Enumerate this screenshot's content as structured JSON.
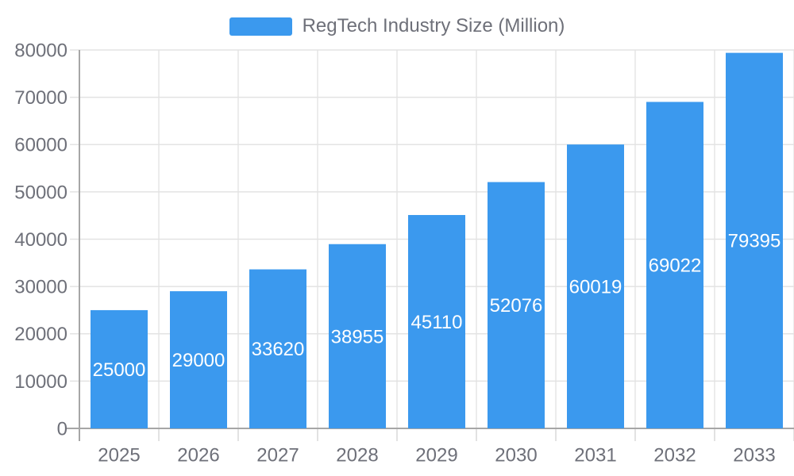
{
  "legend": {
    "label": "RegTech Industry Size (Million)"
  },
  "chart_data": {
    "type": "bar",
    "title": "",
    "categories": [
      "2025",
      "2026",
      "2027",
      "2028",
      "2029",
      "2030",
      "2031",
      "2032",
      "2033"
    ],
    "series": [
      {
        "name": "RegTech Industry Size (Million)",
        "values": [
          25000,
          29000,
          33620,
          38955,
          45110,
          52076,
          60019,
          69022,
          79395
        ]
      }
    ],
    "value_labels": [
      "25000",
      "29000",
      "33620",
      "38955",
      "45110",
      "52076",
      "60019",
      "69022",
      "79395"
    ],
    "value_labels_position": "inside-center",
    "xlabel": "",
    "ylabel": "",
    "ylim": [
      0,
      80000
    ],
    "ytick_step": 10000,
    "yticks": [
      "0",
      "10000",
      "20000",
      "30000",
      "40000",
      "50000",
      "60000",
      "70000",
      "80000"
    ],
    "grid": true,
    "legend_position": "top-center",
    "colors": {
      "bar": "#3B99EE",
      "grid": "#E3E3E3",
      "axis": "#A6A6A6",
      "category_tick": "#D6D6D6",
      "axis_label": "#6E7079",
      "value_label": "#FFFFFF",
      "background": "#FFFFFF"
    }
  }
}
